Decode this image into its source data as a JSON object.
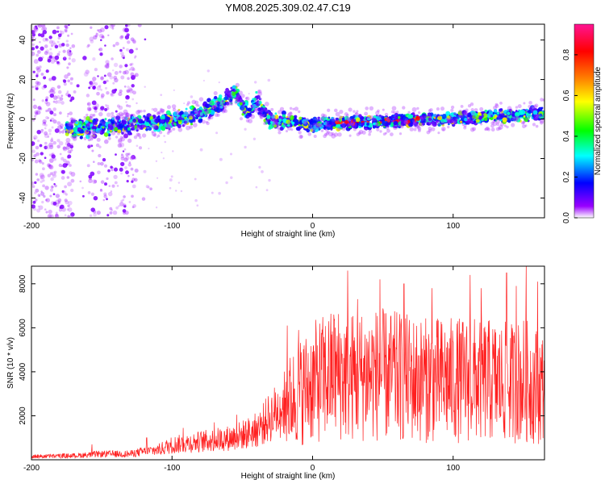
{
  "title": "YM08.2025.309.02.47.C19",
  "chart_data": [
    {
      "type": "heatmap",
      "xlabel": "Height of straight line (km)",
      "ylabel": "Frequency (Hz)",
      "xlim": [
        -200,
        165
      ],
      "ylim": [
        -50,
        48
      ],
      "x_ticks": [
        -200,
        -100,
        0,
        100
      ],
      "x_tick_labels": [
        "-200",
        "-100",
        "0",
        "100"
      ],
      "y_ticks": [
        -40,
        -20,
        0,
        20,
        40
      ],
      "y_tick_labels": [
        "-40",
        "-20",
        "0",
        "20",
        "40"
      ],
      "colorbar": {
        "label": "Normalized spectral amplitude",
        "range": [
          0,
          0.95
        ],
        "ticks": [
          0.0,
          0.2,
          0.4,
          0.6,
          0.8
        ],
        "tick_labels": [
          "0.0",
          "0.2",
          "0.4",
          "0.6",
          "0.8"
        ],
        "colormap": [
          "#ffffff",
          "#9900ff",
          "#0000ff",
          "#00ffff",
          "#00ff00",
          "#ffff00",
          "#ff8000",
          "#ff0000",
          "#ff1493"
        ]
      },
      "trend": {
        "x": [
          -170,
          -150,
          -130,
          -110,
          -95,
          -80,
          -65,
          -55,
          -50,
          -45,
          -40,
          -35,
          -30,
          -20,
          0,
          20,
          50,
          100,
          165
        ],
        "y": [
          -5,
          -4,
          -3,
          -2,
          0,
          3,
          8,
          13,
          6,
          3,
          10,
          4,
          -1,
          -1,
          -3,
          -2,
          -1,
          0,
          3
        ]
      }
    },
    {
      "type": "line",
      "xlabel": "Height of straight line (km)",
      "ylabel": "SNR (10 * v/v)",
      "xlim": [
        -200,
        165
      ],
      "ylim": [
        0,
        8800
      ],
      "x_ticks": [
        -200,
        -100,
        0,
        100
      ],
      "x_tick_labels": [
        "-200",
        "-100",
        "0",
        "100"
      ],
      "y_ticks": [
        2000,
        4000,
        6000,
        8000
      ],
      "y_tick_labels": [
        "2000",
        "4000",
        "6000",
        "8000"
      ],
      "color": "#ff2020",
      "envelope": {
        "x": [
          -200,
          -170,
          -150,
          -130,
          -120,
          -110,
          -100,
          -80,
          -60,
          -50,
          -40,
          -30,
          -20,
          -10,
          0,
          10,
          20,
          30,
          40,
          60,
          80,
          100,
          120,
          140,
          150,
          165
        ],
        "y": [
          200,
          250,
          350,
          350,
          500,
          600,
          900,
          1100,
          1300,
          1500,
          1800,
          2600,
          3400,
          4200,
          4800,
          5200,
          5400,
          5200,
          5400,
          5200,
          5000,
          5000,
          5000,
          4800,
          5000,
          4500
        ]
      },
      "peaks": {
        "x": [
          -157,
          -118,
          -92,
          -70,
          -54,
          -18,
          -10,
          15,
          25,
          32,
          48,
          65,
          85,
          112,
          120,
          138,
          145,
          152,
          160
        ],
        "y": [
          700,
          1000,
          1450,
          1700,
          2050,
          6100,
          5900,
          6600,
          8600,
          7300,
          8200,
          8000,
          7800,
          8400,
          7800,
          8500,
          7900,
          8800,
          8100
        ]
      }
    }
  ]
}
